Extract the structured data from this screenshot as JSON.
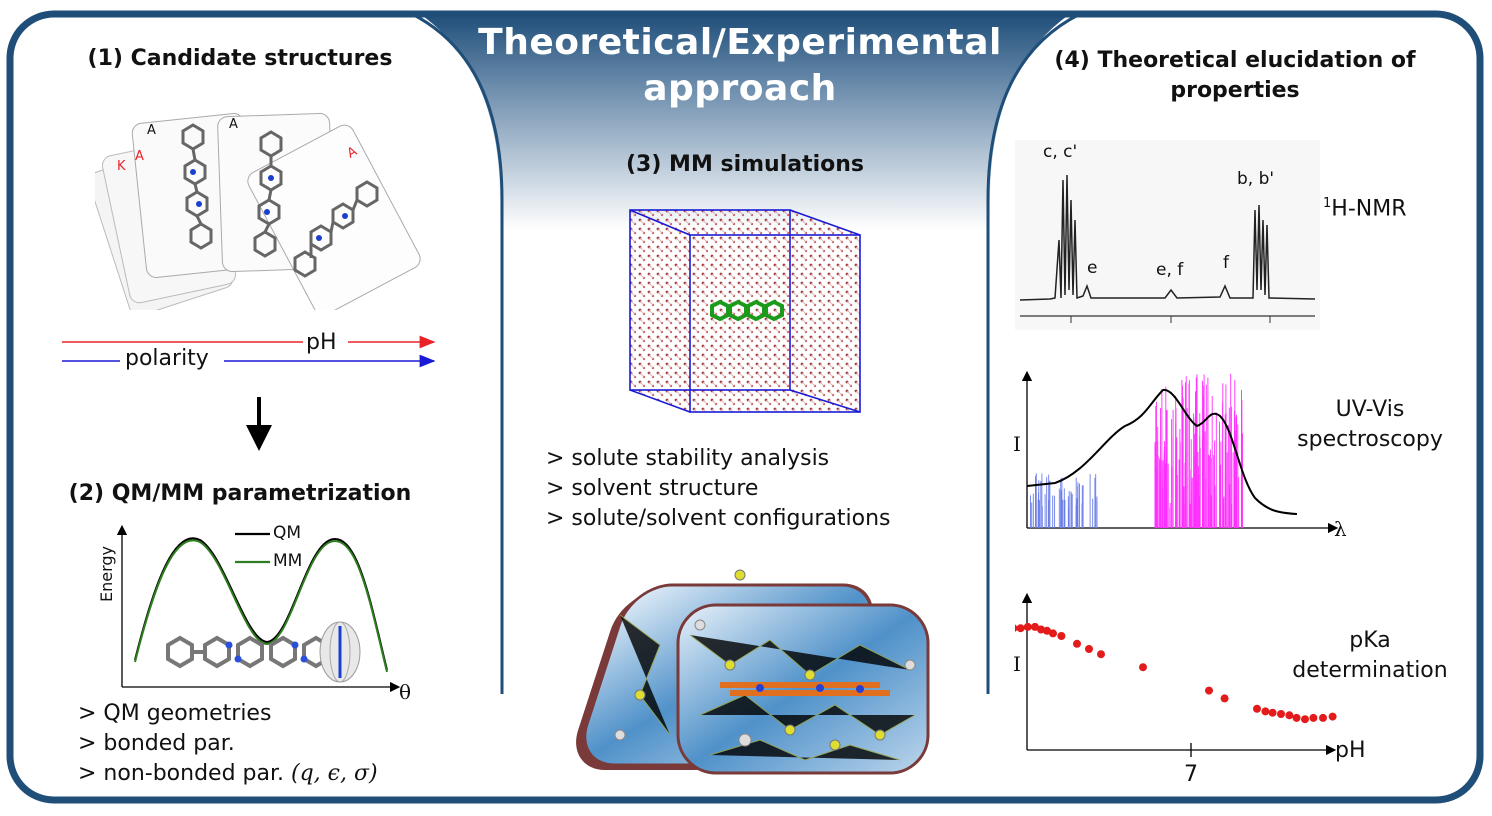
{
  "title": "Theoretical/Experimental approach",
  "panel1": {
    "heading": "(1) Candidate structures",
    "card_pips": [
      "K",
      "A",
      "A",
      "A",
      "A"
    ],
    "ph_label": "pH",
    "polarity_label": "polarity"
  },
  "panel2": {
    "heading": "(2) QM/MM parametrization",
    "ylabel": "Energy",
    "xlabel": "θ",
    "legend": [
      "QM",
      "MM"
    ],
    "bullets": [
      "> QM geometries",
      "> bonded par.",
      "> non-bonded par."
    ],
    "nonbonded_params": "(q, ϵ, σ)"
  },
  "panel3": {
    "heading": "(3) MM simulations",
    "bullets": [
      "> solute stability analysis",
      "> solvent structure",
      "> solute/solvent configurations"
    ]
  },
  "panel4": {
    "heading": "(4) Theoretical elucidation of properties",
    "nmr": {
      "label_sup": "1",
      "label": "H-NMR",
      "peak_labels": [
        "c, c'",
        "e",
        "e, f",
        "f",
        "b, b'"
      ]
    },
    "uv": {
      "label": "UV-Vis spectroscopy",
      "ylabel": "I",
      "xlabel": "λ"
    },
    "pka": {
      "label": "pKa determination",
      "ylabel": "I",
      "xlabel": "pH",
      "tick": "7",
      "points": [
        [
          5.2,
          0.92
        ],
        [
          5.28,
          0.91
        ],
        [
          5.38,
          0.89
        ],
        [
          5.46,
          0.88
        ],
        [
          5.52,
          0.86
        ],
        [
          5.58,
          0.86
        ],
        [
          5.64,
          0.87
        ],
        [
          5.7,
          0.87
        ],
        [
          5.75,
          0.85
        ],
        [
          5.8,
          0.84
        ],
        [
          5.85,
          0.82
        ],
        [
          5.92,
          0.8
        ],
        [
          6.05,
          0.74
        ],
        [
          6.15,
          0.7
        ],
        [
          6.25,
          0.66
        ],
        [
          6.6,
          0.56
        ],
        [
          7.15,
          0.38
        ],
        [
          7.28,
          0.32
        ],
        [
          7.55,
          0.24
        ],
        [
          7.62,
          0.22
        ],
        [
          7.68,
          0.21
        ],
        [
          7.75,
          0.2
        ],
        [
          7.82,
          0.19
        ],
        [
          7.88,
          0.17
        ],
        [
          7.95,
          0.16
        ],
        [
          8.02,
          0.17
        ],
        [
          8.1,
          0.17
        ],
        [
          8.18,
          0.18
        ]
      ]
    }
  },
  "colors": {
    "frame": "#1f4e79",
    "ph_arrow": "#e8232a",
    "polarity_arrow": "#1a1ad6",
    "qm_line": "#000000",
    "mm_line": "#2e7d1e",
    "pka_points": "#e31b1b",
    "uv_sticks": "#ff30ff"
  }
}
